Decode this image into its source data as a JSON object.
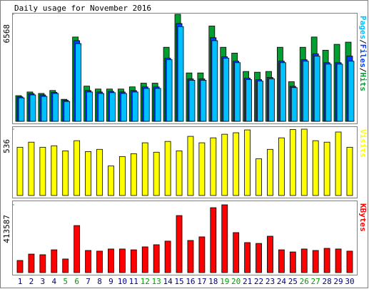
{
  "title": "Daily usage for November 2016",
  "chart_data": [
    {
      "type": "bar3",
      "legend_separator": "/",
      "ylim": [
        0,
        6568
      ],
      "yticks": [
        6568
      ],
      "series": [
        {
          "name": "Pages",
          "color": "#00c0ff",
          "values": [
            1440,
            1620,
            1530,
            1710,
            1220,
            4770,
            1800,
            1710,
            1760,
            1710,
            1800,
            2020,
            2020,
            3780,
            5810,
            2520,
            2520,
            4950,
            3870,
            3600,
            2560,
            2470,
            2610,
            3600,
            2070,
            3690,
            4000,
            3510,
            3510,
            3690
          ]
        },
        {
          "name": "Files",
          "color": "#0040ff",
          "values": [
            1500,
            1700,
            1620,
            1780,
            1290,
            4950,
            1890,
            1800,
            1840,
            1800,
            1890,
            2110,
            2110,
            3870,
            6000,
            2600,
            2600,
            5130,
            3960,
            3690,
            2650,
            2560,
            2690,
            3690,
            2150,
            3780,
            4140,
            3600,
            3600,
            4000
          ]
        },
        {
          "name": "Hits",
          "color": "#00a030",
          "values": [
            1575,
            1800,
            1710,
            1890,
            1350,
            5173,
            2160,
            1980,
            1980,
            1980,
            2114,
            2340,
            2340,
            4544,
            6568,
            2969,
            2969,
            5848,
            4544,
            4184,
            3059,
            3014,
            3059,
            4544,
            2429,
            4544,
            5173,
            4364,
            4724,
            4859
          ]
        }
      ]
    },
    {
      "type": "bar",
      "ylim": [
        0,
        536
      ],
      "yticks": [
        536
      ],
      "series": [
        {
          "name": "Visits",
          "color": "#ffff00",
          "values": [
            390,
            431,
            390,
            402,
            361,
            443,
            355,
            373,
            239,
            315,
            338,
            426,
            350,
            437,
            361,
            478,
            426,
            466,
            495,
            507,
            530,
            297,
            373,
            466,
            533,
            536,
            443,
            431,
            513,
            390
          ]
        }
      ]
    },
    {
      "type": "bar",
      "ylim": [
        0,
        413587
      ],
      "yticks": [
        413587
      ],
      "categories": [
        "1",
        "2",
        "3",
        "4",
        "5",
        "6",
        "7",
        "8",
        "9",
        "10",
        "11",
        "12",
        "13",
        "14",
        "15",
        "16",
        "17",
        "18",
        "19",
        "20",
        "21",
        "22",
        "23",
        "24",
        "25",
        "26",
        "27",
        "28",
        "29",
        "30"
      ],
      "category_color": "#000080",
      "highlight_color": "#00a000",
      "highlight_indices": [
        4,
        5,
        11,
        12,
        18,
        19,
        25,
        26
      ],
      "series": [
        {
          "name": "KBytes",
          "color": "#ff0000",
          "values": [
            74000,
            113000,
            109000,
            139000,
            83000,
            287000,
            135000,
            131000,
            144000,
            144000,
            139000,
            157000,
            170000,
            192000,
            348000,
            196000,
            218000,
            396000,
            413587,
            244000,
            183000,
            178000,
            222000,
            139000,
            126000,
            144000,
            135000,
            148000,
            144000,
            131000
          ]
        }
      ]
    }
  ]
}
